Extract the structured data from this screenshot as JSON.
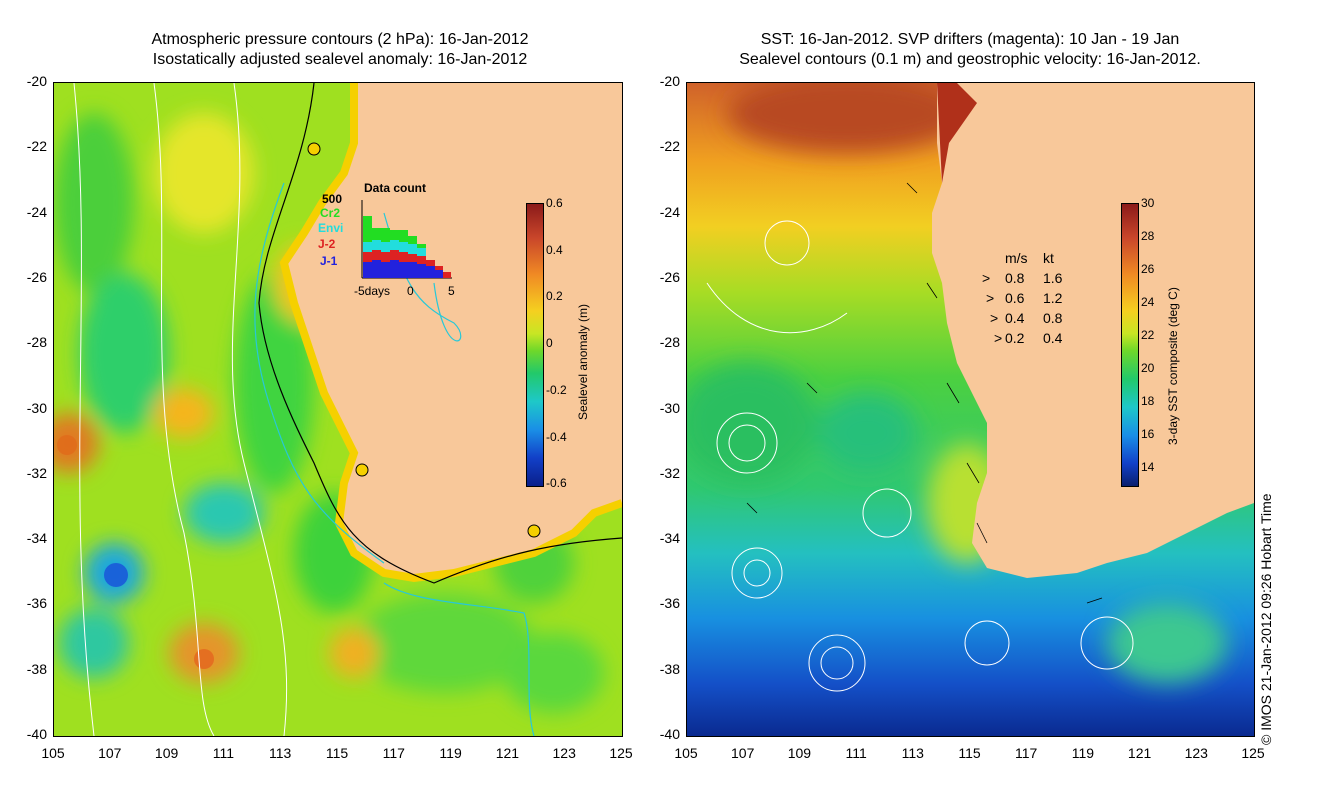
{
  "left_panel": {
    "title_line1": "Atmospheric pressure contours (2 hPa): 16-Jan-2012",
    "title_line2": "Isostatically adjusted sealevel anomaly: 16-Jan-2012",
    "colorbar": {
      "label": "Sealevel anomaly (m)",
      "ticks": [
        "0.6",
        "0.4",
        "0.2",
        "0",
        "-0.2",
        "-0.4",
        "-0.6"
      ],
      "range": [
        -0.6,
        0.6
      ]
    },
    "inset": {
      "title": "Data count",
      "y_max_label": "500",
      "x_labels": [
        "-5days",
        "0",
        "5"
      ],
      "missions": [
        {
          "name": "Cr2",
          "color": "#22dd22"
        },
        {
          "name": "Envi",
          "color": "#22dddd"
        },
        {
          "name": "J-2",
          "color": "#dd2222"
        },
        {
          "name": "J-1",
          "color": "#2222dd"
        }
      ]
    }
  },
  "right_panel": {
    "title_line1": "SST: 16-Jan-2012. SVP drifters (magenta): 10 Jan - 19 Jan",
    "title_line2": "Sealevel contours (0.1 m) and geostrophic velocity: 16-Jan-2012.",
    "colorbar": {
      "label": "3-day SST composite (deg C)",
      "ticks": [
        "30",
        "28",
        "26",
        "24",
        "22",
        "20",
        "18",
        "16",
        "14"
      ],
      "range": [
        13,
        30
      ]
    },
    "speed_legend": {
      "header_ms": "m/s",
      "header_kt": "kt",
      "rows": [
        {
          "ms": "0.8",
          "kt": "1.6"
        },
        {
          "ms": "0.6",
          "kt": "1.2"
        },
        {
          "ms": "0.4",
          "kt": "0.8"
        },
        {
          "ms": "0.2",
          "kt": "0.4"
        }
      ]
    }
  },
  "axes": {
    "y_labels": [
      "-20",
      "-22",
      "-24",
      "-26",
      "-28",
      "-30",
      "-32",
      "-34",
      "-36",
      "-38",
      "-40"
    ],
    "x_labels": [
      "105",
      "107",
      "109",
      "111",
      "113",
      "115",
      "117",
      "119",
      "121",
      "123",
      "125"
    ]
  },
  "credit": "© IMOS 21-Jan-2012 09:26 Hobart Time"
}
